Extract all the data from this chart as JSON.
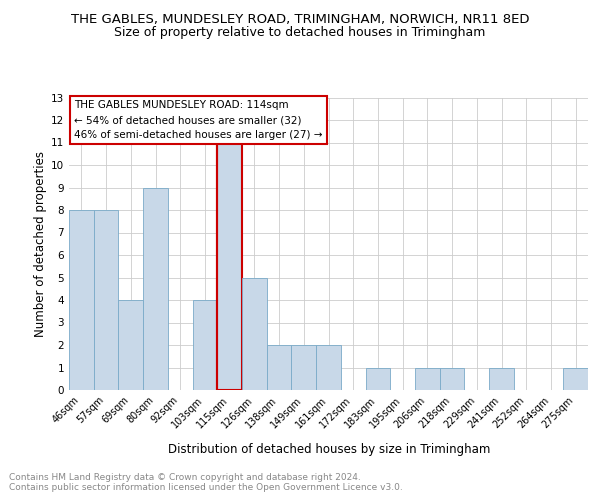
{
  "title": "THE GABLES, MUNDESLEY ROAD, TRIMINGHAM, NORWICH, NR11 8ED",
  "subtitle": "Size of property relative to detached houses in Trimingham",
  "xlabel": "Distribution of detached houses by size in Trimingham",
  "ylabel": "Number of detached properties",
  "categories": [
    "46sqm",
    "57sqm",
    "69sqm",
    "80sqm",
    "92sqm",
    "103sqm",
    "115sqm",
    "126sqm",
    "138sqm",
    "149sqm",
    "161sqm",
    "172sqm",
    "183sqm",
    "195sqm",
    "206sqm",
    "218sqm",
    "229sqm",
    "241sqm",
    "252sqm",
    "264sqm",
    "275sqm"
  ],
  "values": [
    8,
    8,
    4,
    9,
    0,
    4,
    11,
    5,
    2,
    2,
    2,
    0,
    1,
    0,
    1,
    1,
    0,
    1,
    0,
    0,
    1
  ],
  "highlight_index": 6,
  "bar_color": "#c8d8e8",
  "bar_edge_color": "#7aaac8",
  "highlight_line_color": "#cc0000",
  "annotation_text": "THE GABLES MUNDESLEY ROAD: 114sqm\n← 54% of detached houses are smaller (32)\n46% of semi-detached houses are larger (27) →",
  "annotation_box_color": "#ffffff",
  "annotation_box_edge": "#cc0000",
  "ylim": [
    0,
    13
  ],
  "yticks": [
    0,
    1,
    2,
    3,
    4,
    5,
    6,
    7,
    8,
    9,
    10,
    11,
    12,
    13
  ],
  "footer_text": "Contains HM Land Registry data © Crown copyright and database right 2024.\nContains public sector information licensed under the Open Government Licence v3.0.",
  "bg_color": "#ffffff",
  "grid_color": "#cccccc",
  "title_fontsize": 9.5,
  "subtitle_fontsize": 9,
  "axis_label_fontsize": 8.5,
  "tick_fontsize": 7,
  "annotation_fontsize": 7.5,
  "footer_fontsize": 6.5
}
